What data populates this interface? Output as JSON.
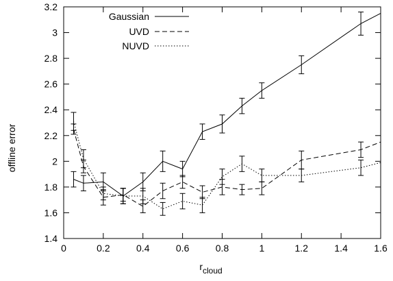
{
  "chart_data": {
    "type": "line",
    "title": "",
    "xlabel": "r",
    "xlabel_subscript": "cloud",
    "ylabel": "offline error",
    "xlim": [
      0,
      1.6
    ],
    "ylim": [
      1.4,
      3.2
    ],
    "grid": false,
    "legend_position": "top-left",
    "x_ticks": [
      0,
      0.2,
      0.4,
      0.6,
      0.8,
      1,
      1.2,
      1.4,
      1.6
    ],
    "x_tick_labels": [
      "0",
      "0.2",
      "0.4",
      "0.6",
      "0.8",
      "1",
      "1.2",
      "1.4",
      "1.6"
    ],
    "y_ticks": [
      1.4,
      1.6,
      1.8,
      2.0,
      2.2,
      2.4,
      2.6,
      2.8,
      3.0,
      3.2
    ],
    "y_tick_labels": [
      "1.4",
      "1.6",
      "1.8",
      "2",
      "2.2",
      "2.4",
      "2.6",
      "2.8",
      "3",
      "3.2"
    ],
    "series": [
      {
        "name": "Gaussian",
        "dash": "solid",
        "x": [
          0.05,
          0.1,
          0.2,
          0.3,
          0.4,
          0.5,
          0.6,
          0.7,
          0.8,
          0.9,
          1.0,
          1.2,
          1.5,
          1.6
        ],
        "y": [
          1.86,
          1.83,
          1.84,
          1.73,
          1.84,
          2.0,
          1.94,
          2.23,
          2.29,
          2.43,
          2.55,
          2.75,
          3.07,
          3.15
        ],
        "err": [
          0.06,
          0.06,
          0.07,
          0.06,
          0.07,
          0.08,
          0.06,
          0.06,
          0.07,
          0.06,
          0.06,
          0.07,
          0.09,
          null
        ]
      },
      {
        "name": "UVD",
        "dash": "dashed",
        "x": [
          0.05,
          0.1,
          0.2,
          0.3,
          0.4,
          0.5,
          0.6,
          0.7,
          0.8,
          0.9,
          1.0,
          1.2,
          1.5,
          1.6
        ],
        "y": [
          2.25,
          1.96,
          1.72,
          1.74,
          1.65,
          1.77,
          1.84,
          1.76,
          1.8,
          1.78,
          1.79,
          2.01,
          2.09,
          2.15
        ],
        "err": [
          0.04,
          0.05,
          0.06,
          0.05,
          0.05,
          0.06,
          0.05,
          0.05,
          0.06,
          0.04,
          0.05,
          0.07,
          0.06,
          null
        ]
      },
      {
        "name": "NUVD",
        "dash": "dotted",
        "x": [
          0.05,
          0.1,
          0.2,
          0.3,
          0.4,
          0.5,
          0.6,
          0.7,
          0.8,
          0.9,
          1.0,
          1.2,
          1.5,
          1.6
        ],
        "y": [
          2.31,
          2.02,
          1.75,
          1.73,
          1.73,
          1.63,
          1.69,
          1.66,
          1.88,
          1.98,
          1.89,
          1.89,
          1.95,
          1.99
        ],
        "err": [
          0.07,
          0.07,
          0.05,
          0.06,
          0.06,
          0.05,
          0.06,
          0.06,
          0.06,
          0.06,
          0.05,
          0.05,
          0.06,
          null
        ]
      }
    ]
  }
}
